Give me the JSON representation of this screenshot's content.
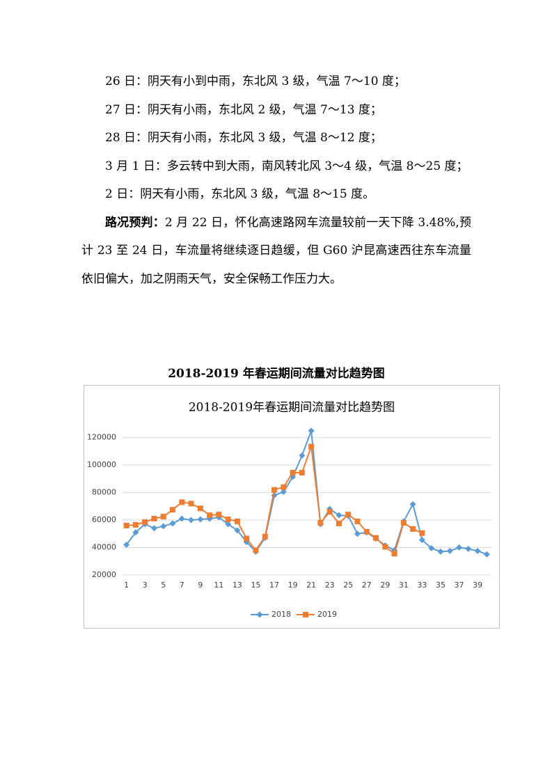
{
  "paragraphs": [
    "26 日：阴天有小到中雨，东北风 3 级，气温 7～10 度；",
    "27 日：阴天有小雨，东北风 2 级，气温 7～13 度；",
    "28 日：阴天有小雨，东北风 3 级，气温 8～12 度；",
    "3 月 1 日：多云转中到大雨，南风转北风 3～4 级，气温 8～25 度；",
    "2 日：阴天有小雨，东北风 3 级，气温 8～15 度。"
  ],
  "forecast": {
    "lead": "路况预判：",
    "text": "2 月 22 日，怀化高速路网车流量较前一天下降 3.48%,预计 23 至 24 日，车流量将继续逐日趋缓，但 G60 沪昆高速西往东车流量依旧偏大，加之阴雨天气，安全保畅工作压力大。"
  },
  "caption": "2018-2019 年春运期间流量对比趋势图",
  "chart_data": {
    "type": "line",
    "title": "2018-2019年春运期间流量对比趋势图",
    "x": [
      1,
      2,
      3,
      4,
      5,
      6,
      7,
      8,
      9,
      10,
      11,
      12,
      13,
      14,
      15,
      16,
      17,
      18,
      19,
      20,
      21,
      22,
      23,
      24,
      25,
      26,
      27,
      28,
      29,
      30,
      31,
      32,
      33,
      34,
      35,
      36,
      37,
      38,
      39,
      40
    ],
    "xlim": [
      0.5,
      40.5
    ],
    "xticks": [
      1,
      3,
      5,
      7,
      9,
      11,
      13,
      15,
      17,
      19,
      21,
      23,
      25,
      27,
      29,
      31,
      33,
      35,
      37,
      39
    ],
    "ylim": [
      20000,
      130000
    ],
    "yticks": [
      20000,
      40000,
      60000,
      80000,
      100000,
      120000
    ],
    "grid": true,
    "legend": "bottom",
    "series": [
      {
        "name": "2018",
        "color": "#5b9bd5",
        "marker": "diamond",
        "values": [
          42000,
          51000,
          57000,
          54000,
          55500,
          57500,
          61000,
          60000,
          60500,
          61000,
          62000,
          57000,
          52500,
          44000,
          37000,
          47000,
          78000,
          80500,
          91500,
          107000,
          125000,
          57000,
          68000,
          63500,
          63000,
          50000,
          51000,
          46500,
          41500,
          38000,
          59000,
          71500,
          45500,
          39500,
          37000,
          37500,
          40000,
          39000,
          37500,
          35000
        ]
      },
      {
        "name": "2019",
        "color": "#ed7d31",
        "marker": "square",
        "values": [
          56000,
          56500,
          58500,
          61000,
          62500,
          67500,
          73000,
          72000,
          68500,
          63500,
          64000,
          60500,
          59000,
          46500,
          38000,
          48000,
          82000,
          84000,
          94500,
          94500,
          113500,
          58000,
          66000,
          57500,
          64000,
          59000,
          51500,
          47000,
          40500,
          35500,
          58000,
          53500,
          50500,
          null,
          null,
          null,
          null,
          null,
          null,
          null
        ]
      }
    ]
  }
}
